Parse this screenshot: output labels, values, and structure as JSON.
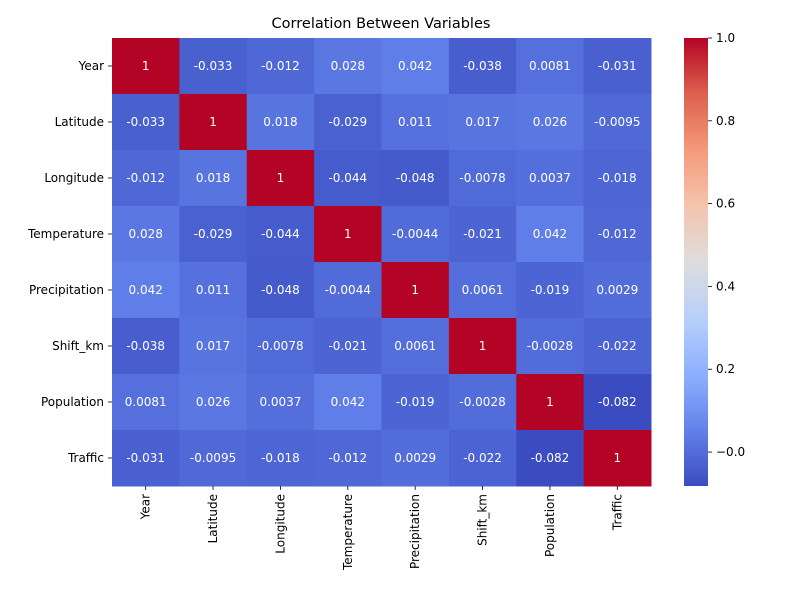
{
  "chart_data": {
    "type": "heatmap",
    "title": "Correlation Between Variables",
    "variables": [
      "Year",
      "Latitude",
      "Longitude",
      "Temperature",
      "Precipitation",
      "Shift_km",
      "Population",
      "Traffic"
    ],
    "matrix": [
      [
        1,
        -0.033,
        -0.012,
        0.028,
        0.042,
        -0.038,
        0.0081,
        -0.031
      ],
      [
        -0.033,
        1,
        0.018,
        -0.029,
        0.011,
        0.017,
        0.026,
        -0.0095
      ],
      [
        -0.012,
        0.018,
        1,
        -0.044,
        -0.048,
        -0.0078,
        0.0037,
        -0.018
      ],
      [
        0.028,
        -0.029,
        -0.044,
        1,
        -0.0044,
        -0.021,
        0.042,
        -0.012
      ],
      [
        0.042,
        0.011,
        -0.048,
        -0.0044,
        1,
        0.0061,
        -0.019,
        0.0029
      ],
      [
        -0.038,
        0.017,
        -0.0078,
        -0.021,
        0.0061,
        1,
        -0.0028,
        -0.022
      ],
      [
        0.0081,
        0.026,
        0.0037,
        0.042,
        -0.019,
        -0.0028,
        1,
        -0.082
      ],
      [
        -0.031,
        -0.0095,
        -0.018,
        -0.012,
        0.0029,
        -0.022,
        -0.082,
        1
      ]
    ],
    "colormap": "coolwarm",
    "vmin": -0.082,
    "vmax": 1,
    "colorbar_ticks": [
      -0.0,
      0.2,
      0.4,
      0.6,
      0.8,
      1.0
    ],
    "colorbar_tick_labels": [
      "−0.0",
      "0.2",
      "0.4",
      "0.6",
      "0.8",
      "1.0"
    ]
  }
}
